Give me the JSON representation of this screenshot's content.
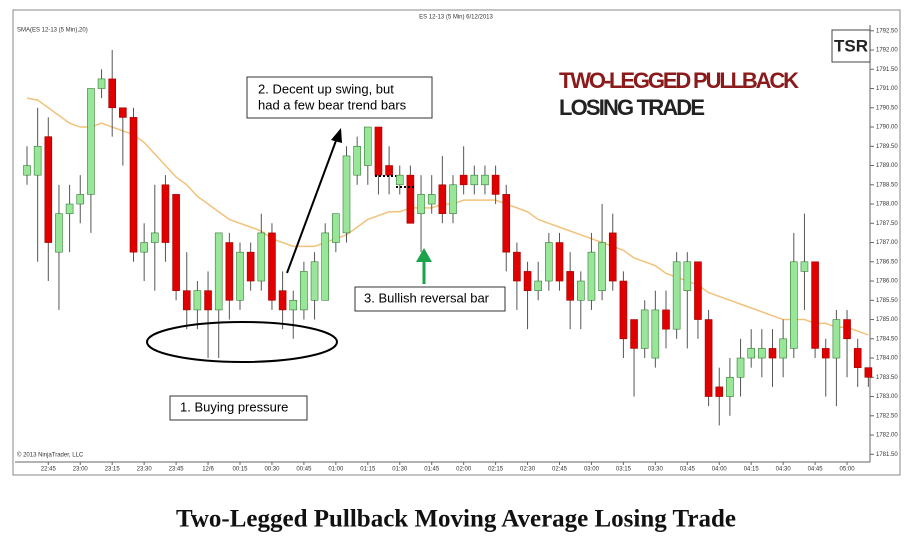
{
  "chart_data": {
    "type": "candlestick",
    "title": "ES 12-13 (5 Min)  6/12/2013",
    "indicator_label": "SMA(ES 12-13 (5 Min),20)",
    "copyright": "© 2013 NinjaTrader, LLC",
    "logo": "TSR",
    "headline": [
      "TWO-LEGGED PULLBACK",
      "LOSING TRADE"
    ],
    "annotations": [
      {
        "lines": [
          "2. Decent up swing, but",
          "had a few bear trend bars"
        ]
      },
      {
        "lines": [
          "1. Buying pressure"
        ]
      },
      {
        "lines": [
          "3. Bullish  reversal bar"
        ]
      }
    ],
    "caption": "Two-Legged Pullback Moving Average Losing Trade",
    "categories": [
      null,
      null,
      "22:45",
      null,
      null,
      "23:00",
      null,
      null,
      "23:15",
      null,
      null,
      "23:30",
      null,
      null,
      "23:45",
      null,
      null,
      "12/6",
      null,
      null,
      "00:15",
      null,
      null,
      "00:30",
      null,
      null,
      "00:45",
      null,
      null,
      "01:00",
      null,
      null,
      "01:15",
      null,
      null,
      "01:30",
      null,
      null,
      "01:45",
      null,
      null,
      "02:00",
      null,
      null,
      "02:15",
      null,
      null,
      "02:30",
      null,
      null,
      "02:45",
      null,
      null,
      "03:00",
      null,
      null,
      "03:15",
      null,
      null,
      "03:30",
      null,
      null,
      "03:45",
      null,
      null,
      "04:00",
      null,
      null,
      "04:15",
      null,
      null,
      "04:30",
      null,
      null,
      "04:45",
      null,
      null,
      "05:00",
      null,
      null
    ],
    "open": [
      1788.75,
      1788.75,
      1789.75,
      1786.75,
      1787.75,
      1788.0,
      1788.25,
      1791.0,
      1791.25,
      1790.5,
      1790.25,
      1786.75,
      1787.0,
      1788.5,
      1788.25,
      1785.75,
      1785.25,
      1785.75,
      1785.25,
      1787.0,
      1785.5,
      1786.75,
      1786.0,
      1787.25,
      1785.75,
      1785.25,
      1785.25,
      1785.5,
      1785.5,
      1787.0,
      1787.25,
      1788.75,
      1789.0,
      1790.0,
      1789.0,
      1788.5,
      1788.75,
      1787.75,
      1788.0,
      1788.5,
      1787.75,
      1788.75,
      1788.5,
      1788.5,
      1788.75,
      1788.25,
      1786.75,
      1786.25,
      1785.75,
      1786.0,
      1787.0,
      1786.25,
      1785.5,
      1785.5,
      1785.75,
      1787.25,
      1786.0,
      1785.0,
      1784.25,
      1784.0,
      1785.25,
      1784.75,
      1785.75,
      1786.5,
      1785.0,
      1783.25,
      1783.0,
      1783.5,
      1784.0,
      1784.0,
      1784.25,
      1784.0,
      1784.25,
      1786.25,
      1786.5,
      1784.25,
      1784.0,
      1785.0,
      1784.25,
      1783.75
    ],
    "high": [
      1789.5,
      1790.5,
      1790.25,
      1788.5,
      1788.5,
      1788.75,
      1791.0,
      1791.5,
      1792.0,
      1790.5,
      1790.5,
      1787.5,
      1788.5,
      1788.75,
      1788.25,
      1786.75,
      1786.0,
      1786.25,
      1787.25,
      1787.25,
      1787.0,
      1787.0,
      1787.75,
      1787.5,
      1786.25,
      1785.75,
      1786.5,
      1786.75,
      1787.5,
      1787.75,
      1789.5,
      1789.75,
      1790.0,
      1790.0,
      1789.5,
      1789.0,
      1789.0,
      1788.75,
      1788.75,
      1789.25,
      1788.75,
      1789.5,
      1789.0,
      1789.0,
      1789.0,
      1788.5,
      1787.0,
      1786.5,
      1786.5,
      1787.25,
      1787.25,
      1786.75,
      1786.25,
      1787.25,
      1788.0,
      1787.75,
      1786.25,
      1785.0,
      1785.5,
      1785.75,
      1785.75,
      1786.75,
      1786.75,
      1786.5,
      1785.25,
      1783.75,
      1784.0,
      1784.5,
      1784.75,
      1784.75,
      1784.75,
      1785.0,
      1787.25,
      1787.75,
      1786.5,
      1784.5,
      1785.25,
      1785.25,
      1784.5,
      1783.75
    ],
    "low": [
      1788.5,
      1786.5,
      1786.0,
      1785.25,
      1786.75,
      1787.5,
      1787.25,
      1790.75,
      1789.75,
      1789.0,
      1786.5,
      1786.0,
      1785.75,
      1786.5,
      1785.5,
      1784.75,
      1784.75,
      1784.0,
      1784.0,
      1785.0,
      1785.25,
      1785.75,
      1785.75,
      1785.25,
      1784.75,
      1784.5,
      1785.0,
      1785.0,
      1785.5,
      1786.75,
      1787.0,
      1788.5,
      1788.5,
      1788.25,
      1788.25,
      1788.25,
      1787.5,
      1786.75,
      1787.75,
      1787.5,
      1787.5,
      1788.25,
      1788.25,
      1788.25,
      1788.0,
      1786.25,
      1785.25,
      1784.75,
      1785.5,
      1785.75,
      1785.75,
      1784.75,
      1784.75,
      1785.25,
      1785.5,
      1785.75,
      1784.0,
      1783.0,
      1784.0,
      1783.75,
      1784.25,
      1784.5,
      1784.25,
      1784.5,
      1782.75,
      1782.25,
      1782.5,
      1783.0,
      1783.75,
      1783.5,
      1783.25,
      1783.5,
      1784.0,
      1785.25,
      1784.0,
      1783.0,
      1782.75,
      1783.5,
      1783.25,
      1783.25
    ],
    "close": [
      1789.0,
      1789.5,
      1787.0,
      1787.75,
      1788.0,
      1788.25,
      1791.0,
      1791.25,
      1790.5,
      1790.25,
      1786.75,
      1787.0,
      1787.25,
      1787.0,
      1785.75,
      1785.25,
      1785.75,
      1785.25,
      1787.25,
      1785.5,
      1786.75,
      1786.0,
      1787.25,
      1785.5,
      1785.25,
      1785.5,
      1786.25,
      1786.5,
      1787.25,
      1787.75,
      1789.25,
      1789.5,
      1790.0,
      1788.75,
      1788.75,
      1788.75,
      1787.5,
      1788.25,
      1788.25,
      1787.75,
      1788.5,
      1788.5,
      1788.75,
      1788.75,
      1788.25,
      1786.75,
      1786.0,
      1785.75,
      1786.0,
      1787.0,
      1786.0,
      1785.5,
      1786.0,
      1786.75,
      1787.0,
      1786.0,
      1784.5,
      1784.25,
      1785.25,
      1785.25,
      1784.75,
      1786.5,
      1786.5,
      1785.0,
      1783.0,
      1783.0,
      1783.5,
      1784.0,
      1784.25,
      1784.25,
      1784.0,
      1784.5,
      1786.5,
      1786.5,
      1784.25,
      1784.0,
      1785.0,
      1784.5,
      1783.75,
      1783.5
    ],
    "sma": [
      1790.75,
      1790.7,
      1790.5,
      1790.3,
      1790.1,
      1790.0,
      1790.0,
      1790.1,
      1790.0,
      1789.9,
      1789.8,
      1789.6,
      1789.3,
      1789.0,
      1788.7,
      1788.5,
      1788.2,
      1788.0,
      1787.8,
      1787.6,
      1787.5,
      1787.4,
      1787.3,
      1787.1,
      1787.0,
      1786.9,
      1786.9,
      1786.9,
      1787.0,
      1787.1,
      1787.2,
      1787.4,
      1787.6,
      1787.7,
      1787.8,
      1787.8,
      1787.9,
      1787.9,
      1787.9,
      1788.0,
      1788.0,
      1788.1,
      1788.1,
      1788.1,
      1788.1,
      1788.0,
      1787.9,
      1787.8,
      1787.6,
      1787.5,
      1787.4,
      1787.3,
      1787.2,
      1787.1,
      1787.0,
      1786.9,
      1786.8,
      1786.6,
      1786.5,
      1786.4,
      1786.2,
      1786.1,
      1786.0,
      1785.9,
      1785.7,
      1785.6,
      1785.5,
      1785.4,
      1785.3,
      1785.2,
      1785.1,
      1785.0,
      1785.0,
      1785.0,
      1784.9,
      1784.9,
      1784.8,
      1784.8,
      1784.7,
      1784.6
    ],
    "up_color": "#98e698",
    "down_color": "#e00000",
    "sma_color": "#f2c27a",
    "ylim": [
      1781.3,
      1792.65
    ],
    "yticks": [
      {
        "value": 1792.5,
        "label": "1792.50"
      },
      {
        "value": 1792,
        "label": "1792.00"
      },
      {
        "value": 1791.5,
        "label": "1791.50"
      },
      {
        "value": 1791,
        "label": "1791.00"
      },
      {
        "value": 1790.5,
        "label": "1790.50"
      },
      {
        "value": 1790,
        "label": "1790.00"
      },
      {
        "value": 1789.5,
        "label": "1789.50"
      },
      {
        "value": 1789,
        "label": "1789.00"
      },
      {
        "value": 1788.5,
        "label": "1788.50"
      },
      {
        "value": 1788,
        "label": "1788.00"
      },
      {
        "value": 1787.5,
        "label": "1787.50"
      },
      {
        "value": 1787,
        "label": "1787.00"
      },
      {
        "value": 1786.5,
        "label": "1786.50"
      },
      {
        "value": 1786,
        "label": "1786.00"
      },
      {
        "value": 1785.5,
        "label": "1785.50"
      },
      {
        "value": 1785,
        "label": "1785.00"
      },
      {
        "value": 1784.5,
        "label": "1784.50"
      },
      {
        "value": 1784,
        "label": "1784.00"
      },
      {
        "value": 1783.5,
        "label": "1783.50"
      },
      {
        "value": 1783,
        "label": "1783.00"
      },
      {
        "value": 1782.5,
        "label": "1782.50"
      },
      {
        "value": 1782,
        "label": "1782.00"
      },
      {
        "value": 1781.5,
        "label": "1781.50"
      }
    ]
  }
}
